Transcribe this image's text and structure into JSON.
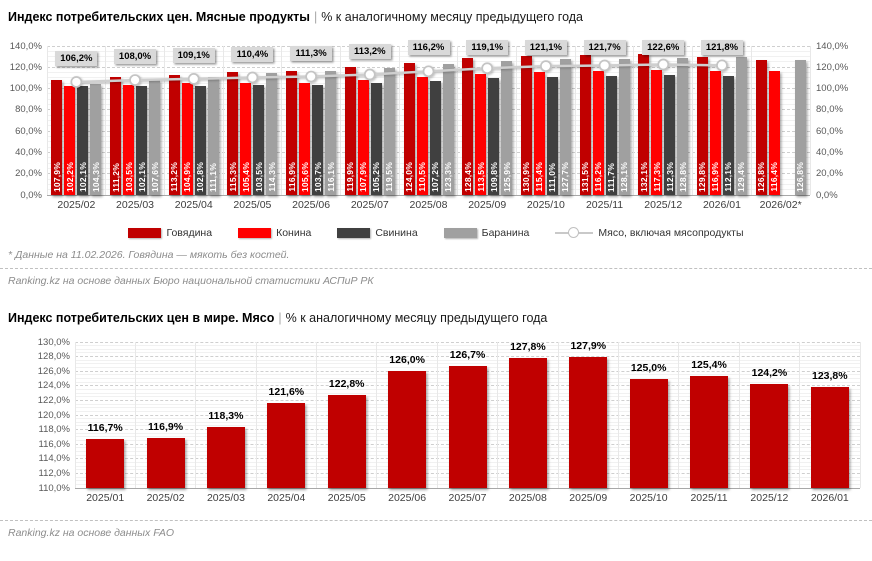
{
  "chart_data": [
    {
      "type": "bar",
      "title": "Индекс потребительских цен. Мясные продукты",
      "title_separator": "|",
      "subtitle": "% к аналогичному месяцу предыдущего года",
      "categories": [
        "2025/02",
        "2025/03",
        "2025/04",
        "2025/05",
        "2025/06",
        "2025/07",
        "2025/08",
        "2025/09",
        "2025/10",
        "2025/11",
        "2025/12",
        "2026/01",
        "2026/02*"
      ],
      "series": [
        {
          "key": "beef",
          "name": "Говядина",
          "color": "#c00000",
          "values": [
            107.9,
            111.2,
            113.2,
            115.3,
            116.9,
            119.9,
            124.0,
            128.4,
            130.9,
            131.5,
            132.1,
            129.8,
            126.8
          ]
        },
        {
          "key": "horse-meat",
          "name": "Конина",
          "color": "#ff0000",
          "values": [
            102.2,
            103.5,
            104.9,
            105.4,
            105.6,
            107.9,
            110.5,
            113.5,
            115.4,
            116.2,
            117.3,
            116.9,
            116.4
          ]
        },
        {
          "key": "pork",
          "name": "Свинина",
          "color": "#404040",
          "values": [
            102.1,
            102.1,
            102.8,
            103.5,
            103.7,
            105.2,
            107.2,
            109.8,
            111.0,
            111.7,
            112.3,
            112.1,
            null
          ]
        },
        {
          "key": "mutton",
          "name": "Баранина",
          "color": "#a0a0a0",
          "values": [
            104.3,
            107.6,
            111.1,
            114.3,
            116.1,
            119.5,
            123.3,
            125.9,
            127.7,
            128.1,
            128.8,
            129.4,
            126.8
          ]
        }
      ],
      "line_series": {
        "key": "meat-incl-products",
        "name": "Мясо, включая мясопродукты",
        "color": "#cfcfcf",
        "values": [
          106.2,
          108.0,
          109.1,
          110.4,
          111.3,
          113.2,
          116.2,
          119.1,
          121.1,
          121.7,
          122.6,
          121.8,
          null
        ]
      },
      "ylim": [
        0,
        140
      ],
      "ytick_step": 20,
      "grid": true,
      "legend_position": "bottom",
      "footnote": "* Данные на 11.02.2026. Говядина — мякоть без костей.",
      "source": "Ranking.kz на основе данных Бюро национальной статистики АСПиР РК"
    },
    {
      "type": "bar",
      "title": "Индекс потребительских цен в мире. Мясо",
      "title_separator": "|",
      "subtitle": "% к аналогичному месяцу предыдущего года",
      "categories": [
        "2025/01",
        "2025/02",
        "2025/03",
        "2025/04",
        "2025/05",
        "2025/06",
        "2025/07",
        "2025/08",
        "2025/09",
        "2025/10",
        "2025/11",
        "2025/12",
        "2026/01"
      ],
      "series": [
        {
          "key": "meat-world",
          "name": "Мясо",
          "color": "#c00000",
          "values": [
            116.7,
            116.9,
            118.3,
            121.6,
            122.8,
            126.0,
            126.7,
            127.8,
            127.9,
            125.0,
            125.4,
            124.2,
            123.8
          ]
        }
      ],
      "ylim": [
        110,
        130
      ],
      "ytick_step": 2,
      "grid": true,
      "legend_position": "none",
      "source": "Ranking.kz на основе данных FAO"
    }
  ]
}
